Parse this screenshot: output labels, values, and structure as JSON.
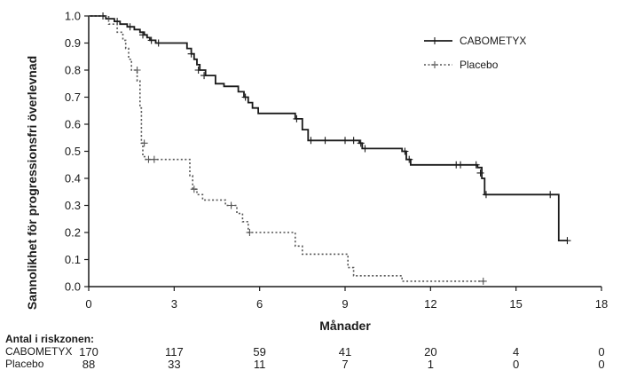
{
  "chart_data": {
    "type": "line",
    "xlabel": "Månader",
    "ylabel": "Sannolikhet för progressionsfri överlevnad",
    "xlim": [
      0,
      18
    ],
    "ylim": [
      0,
      1.0
    ],
    "xticks": [
      0,
      3,
      6,
      9,
      12,
      15,
      18
    ],
    "yticks": [
      0.0,
      0.1,
      0.2,
      0.3,
      0.4,
      0.5,
      0.6,
      0.7,
      0.8,
      0.9,
      1.0
    ],
    "grid": false,
    "legend_position": "top-right",
    "series": [
      {
        "name": "CABOMETYX",
        "style": "solid",
        "color": "#1a1a1a",
        "steps": [
          [
            0,
            1.0
          ],
          [
            0.6,
            0.99
          ],
          [
            0.9,
            0.98
          ],
          [
            1.1,
            0.97
          ],
          [
            1.35,
            0.96
          ],
          [
            1.6,
            0.95
          ],
          [
            1.8,
            0.94
          ],
          [
            1.95,
            0.93
          ],
          [
            2.05,
            0.92
          ],
          [
            2.15,
            0.91
          ],
          [
            2.35,
            0.9
          ],
          [
            3.45,
            0.88
          ],
          [
            3.6,
            0.86
          ],
          [
            3.7,
            0.84
          ],
          [
            3.8,
            0.82
          ],
          [
            3.9,
            0.8
          ],
          [
            4.1,
            0.78
          ],
          [
            4.45,
            0.75
          ],
          [
            4.75,
            0.74
          ],
          [
            5.25,
            0.72
          ],
          [
            5.45,
            0.7
          ],
          [
            5.6,
            0.68
          ],
          [
            5.75,
            0.66
          ],
          [
            5.95,
            0.64
          ],
          [
            7.25,
            0.62
          ],
          [
            7.5,
            0.58
          ],
          [
            7.7,
            0.54
          ],
          [
            9.5,
            0.53
          ],
          [
            9.6,
            0.51
          ],
          [
            11.0,
            0.5
          ],
          [
            11.15,
            0.47
          ],
          [
            11.3,
            0.45
          ],
          [
            13.65,
            0.44
          ],
          [
            13.8,
            0.4
          ],
          [
            13.9,
            0.34
          ],
          [
            16.5,
            0.17
          ],
          [
            16.8,
            0.17
          ]
        ],
        "censored": [
          [
            0.5,
            1.0
          ],
          [
            1.0,
            0.98
          ],
          [
            1.45,
            0.96
          ],
          [
            1.9,
            0.93
          ],
          [
            2.2,
            0.91
          ],
          [
            2.45,
            0.9
          ],
          [
            3.6,
            0.86
          ],
          [
            3.85,
            0.8
          ],
          [
            4.05,
            0.78
          ],
          [
            5.5,
            0.7
          ],
          [
            7.3,
            0.62
          ],
          [
            7.8,
            0.54
          ],
          [
            8.3,
            0.54
          ],
          [
            9.0,
            0.54
          ],
          [
            9.3,
            0.54
          ],
          [
            9.55,
            0.53
          ],
          [
            9.7,
            0.51
          ],
          [
            11.1,
            0.5
          ],
          [
            11.25,
            0.47
          ],
          [
            12.9,
            0.45
          ],
          [
            13.05,
            0.45
          ],
          [
            13.6,
            0.45
          ],
          [
            13.75,
            0.42
          ],
          [
            13.95,
            0.34
          ],
          [
            16.2,
            0.34
          ],
          [
            16.8,
            0.17
          ]
        ]
      },
      {
        "name": "Placebo",
        "style": "dotted",
        "color": "#555555",
        "steps": [
          [
            0,
            1.0
          ],
          [
            0.7,
            0.97
          ],
          [
            1.0,
            0.94
          ],
          [
            1.2,
            0.91
          ],
          [
            1.3,
            0.88
          ],
          [
            1.4,
            0.84
          ],
          [
            1.5,
            0.8
          ],
          [
            1.7,
            0.76
          ],
          [
            1.8,
            0.66
          ],
          [
            1.85,
            0.53
          ],
          [
            1.9,
            0.48
          ],
          [
            2.0,
            0.47
          ],
          [
            3.55,
            0.41
          ],
          [
            3.65,
            0.36
          ],
          [
            3.8,
            0.34
          ],
          [
            4.0,
            0.32
          ],
          [
            4.8,
            0.3
          ],
          [
            5.2,
            0.27
          ],
          [
            5.4,
            0.24
          ],
          [
            5.6,
            0.2
          ],
          [
            7.25,
            0.15
          ],
          [
            7.5,
            0.12
          ],
          [
            9.1,
            0.07
          ],
          [
            9.3,
            0.04
          ],
          [
            11.0,
            0.02
          ],
          [
            13.9,
            0.02
          ]
        ],
        "censored": [
          [
            1.7,
            0.8
          ],
          [
            1.95,
            0.53
          ],
          [
            2.1,
            0.47
          ],
          [
            2.3,
            0.47
          ],
          [
            3.7,
            0.36
          ],
          [
            5.0,
            0.3
          ],
          [
            5.65,
            0.2
          ],
          [
            13.85,
            0.02
          ]
        ]
      }
    ],
    "risk_table": {
      "title": "Antal i riskzonen:",
      "times": [
        0,
        3,
        6,
        9,
        12,
        15,
        18
      ],
      "rows": [
        {
          "name": "CABOMETYX",
          "values": [
            "170",
            "117",
            "59",
            "41",
            "20",
            "4",
            "0"
          ]
        },
        {
          "name": "Placebo",
          "values": [
            "88",
            "33",
            "11",
            "7",
            "1",
            "0",
            "0"
          ]
        }
      ]
    }
  }
}
